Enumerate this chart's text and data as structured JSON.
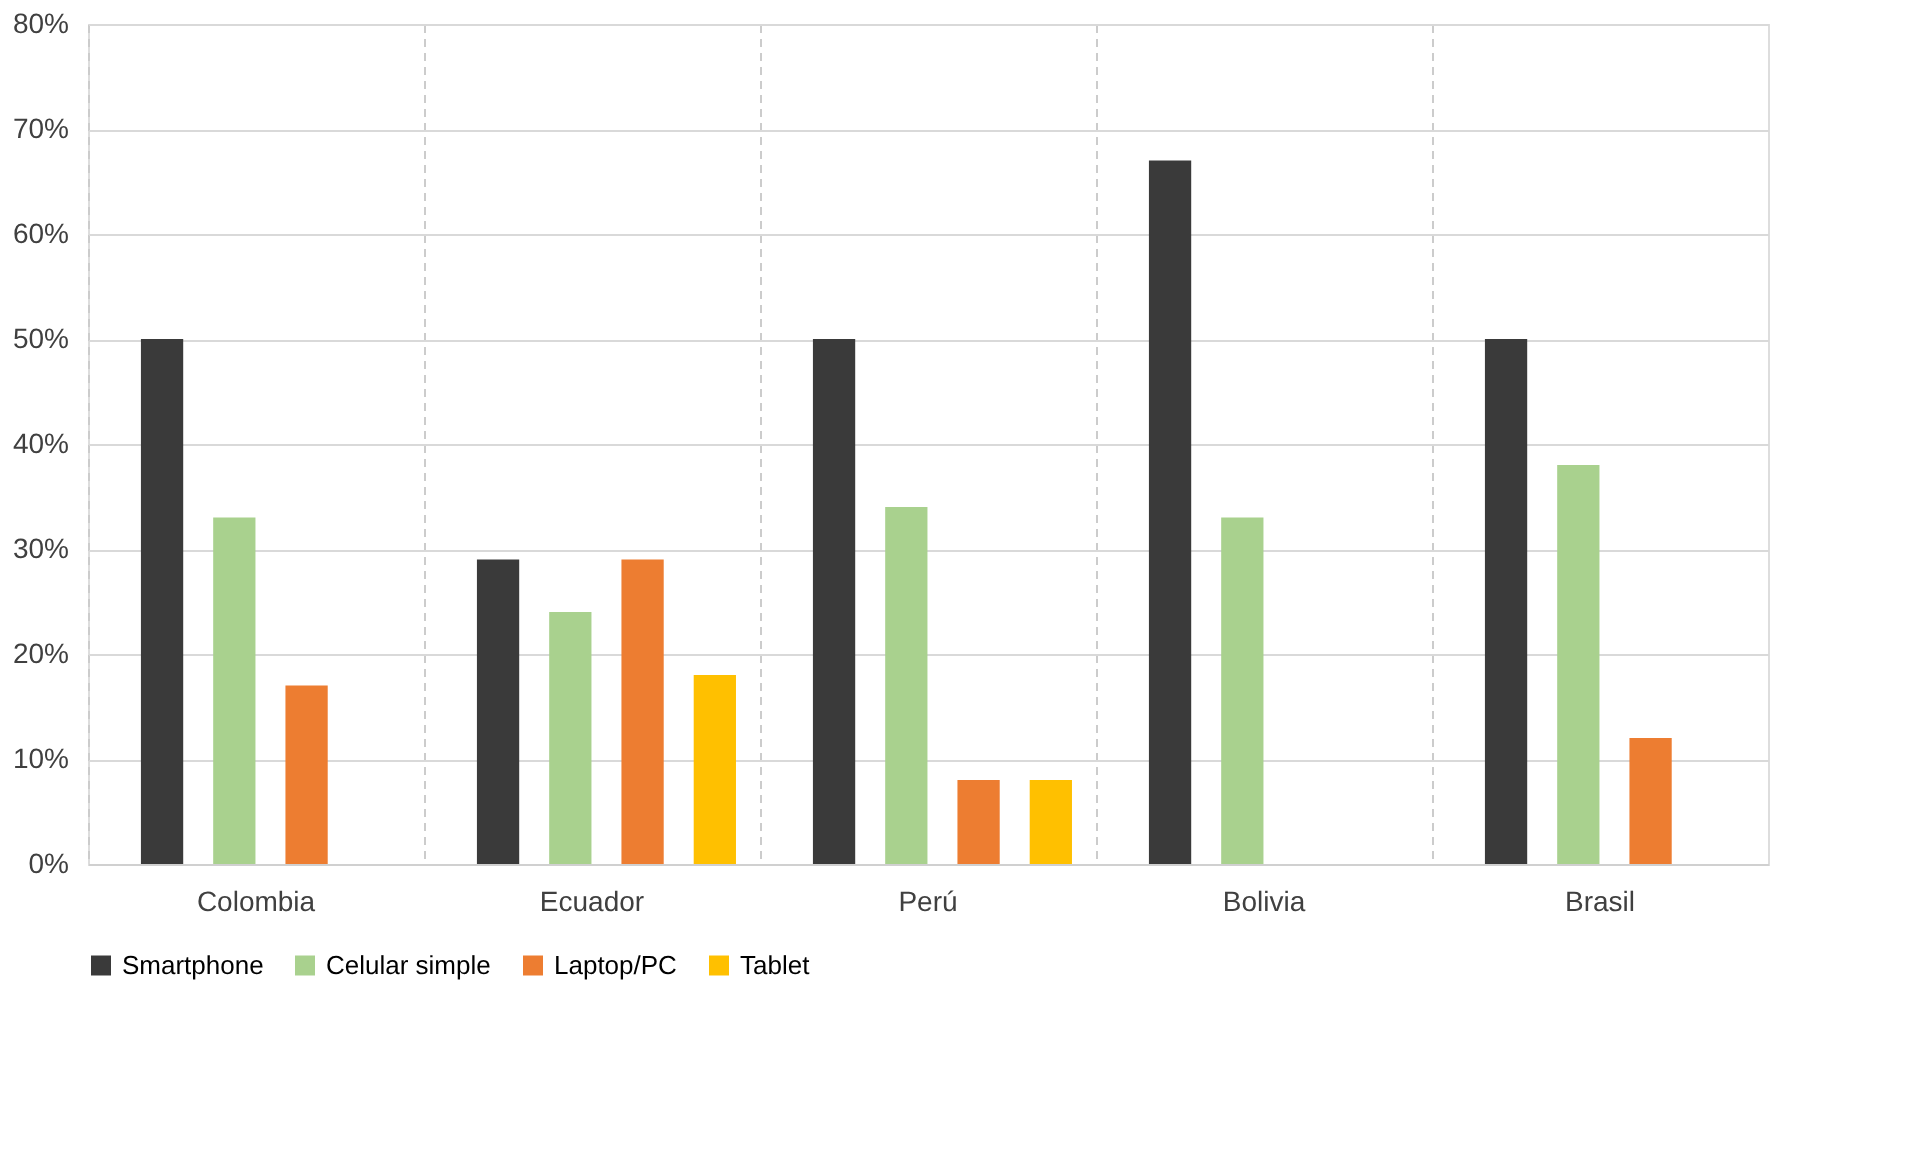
{
  "chart_data": {
    "type": "bar",
    "categories": [
      "Colombia",
      "Ecuador",
      "Perú",
      "Bolivia",
      "Brasil"
    ],
    "series": [
      {
        "name": "Smartphone",
        "color": "#3a3a3a",
        "values": [
          50,
          29,
          50,
          67,
          50
        ]
      },
      {
        "name": "Celular simple",
        "color": "#a9d18e",
        "values": [
          33,
          24,
          34,
          33,
          38
        ]
      },
      {
        "name": "Laptop/PC",
        "color": "#ed7d31",
        "values": [
          17,
          29,
          8,
          null,
          12
        ]
      },
      {
        "name": "Tablet",
        "color": "#ffc000",
        "values": [
          null,
          18,
          8,
          null,
          null
        ]
      }
    ],
    "ylim": [
      0,
      80
    ],
    "yticks": [
      {
        "value": 0,
        "label": "0%"
      },
      {
        "value": 10,
        "label": "10%"
      },
      {
        "value": 20,
        "label": "20%"
      },
      {
        "value": 30,
        "label": "30%"
      },
      {
        "value": 40,
        "label": "40%"
      },
      {
        "value": 50,
        "label": "50%"
      },
      {
        "value": 60,
        "label": "60%"
      },
      {
        "value": 70,
        "label": "70%"
      },
      {
        "value": 80,
        "label": "80%"
      }
    ],
    "grid": true,
    "legend": "bottom"
  }
}
